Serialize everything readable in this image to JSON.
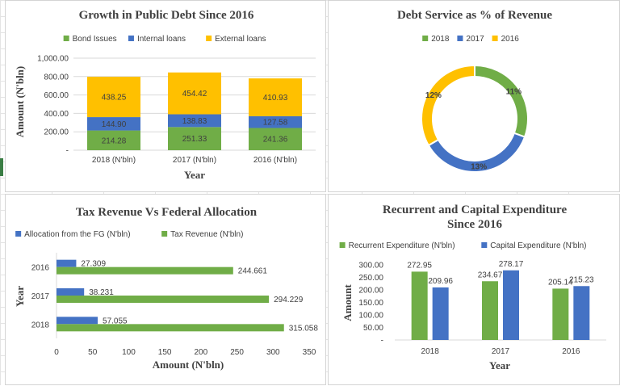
{
  "colors": {
    "green": "#70ad47",
    "blue": "#4472c4",
    "yellow": "#ffc000",
    "text": "#404040",
    "grid": "#d9d9d9"
  },
  "chart_data": [
    {
      "id": "public_debt",
      "type": "stacked-bar",
      "title": "Growth in Public Debt Since 2016",
      "xlabel": "Year",
      "ylabel": "Amount (N'bln)",
      "categories": [
        "2018 (N'bln)",
        "2017 (N'bln)",
        "2016 (N'bln)"
      ],
      "series": [
        {
          "name": "Bond Issues",
          "color": "#70ad47",
          "values": [
            214.28,
            251.33,
            241.36
          ]
        },
        {
          "name": "Internal loans",
          "color": "#4472c4",
          "values": [
            144.9,
            138.83,
            127.58
          ]
        },
        {
          "name": "External loans",
          "color": "#ffc000",
          "values": [
            438.25,
            454.42,
            410.93
          ]
        }
      ],
      "data_labels": [
        [
          "214.28",
          "144.90",
          "438.25"
        ],
        [
          "251.33",
          "138.83",
          "454.42"
        ],
        [
          "241.36",
          "127.58",
          "410.93"
        ]
      ],
      "ylim": [
        0,
        1000
      ],
      "yticks": [
        "-",
        "200.00",
        "400.00",
        "600.00",
        "800.00",
        "1,000.00"
      ],
      "legend": "top",
      "grid": true
    },
    {
      "id": "debt_service",
      "type": "doughnut",
      "title": "Debt Service as % of Revenue",
      "series": [
        {
          "name": "2018",
          "color": "#70ad47",
          "value": 11,
          "label": "11%"
        },
        {
          "name": "2017",
          "color": "#4472c4",
          "value": 13,
          "label": "13%"
        },
        {
          "name": "2016",
          "color": "#ffc000",
          "value": 12,
          "label": "12%"
        }
      ],
      "legend": "top"
    },
    {
      "id": "tax_vs_fed",
      "type": "horizontal-bar",
      "title": "Tax Revenue Vs Federal Allocation",
      "xlabel": "Amount (N'bln)",
      "ylabel": "Year",
      "categories": [
        "2016",
        "2017",
        "2018"
      ],
      "series": [
        {
          "name": "Allocation from the FG (N'bln)",
          "color": "#4472c4",
          "values": [
            27.309,
            38.231,
            57.055
          ],
          "labels": [
            "27.309",
            "38.231",
            "57.055"
          ]
        },
        {
          "name": "Tax Revenue (N'bln)",
          "color": "#70ad47",
          "values": [
            244.661,
            294.229,
            315.058
          ],
          "labels": [
            "244.661",
            "294.229",
            "315.058"
          ]
        }
      ],
      "xlim": [
        0,
        350
      ],
      "xticks": [
        "0",
        "50",
        "100",
        "150",
        "200",
        "250",
        "300",
        "350"
      ],
      "legend": "top",
      "grid": false
    },
    {
      "id": "expenditure",
      "type": "bar",
      "title_lines": [
        "Recurrent and Capital Expenditure",
        "Since 2016"
      ],
      "xlabel": "Year",
      "ylabel": "Amount",
      "categories": [
        "2018",
        "2017",
        "2016"
      ],
      "series": [
        {
          "name": "Recurrent Expenditure (N'bln)",
          "color": "#70ad47",
          "values": [
            272.95,
            234.67,
            205.14
          ],
          "labels": [
            "272.95",
            "234.67",
            "205.14"
          ]
        },
        {
          "name": "Capital Expenditure (N'bln)",
          "color": "#4472c4",
          "values": [
            209.96,
            278.17,
            215.23
          ],
          "labels": [
            "209.96",
            "278.17",
            "215.23"
          ]
        }
      ],
      "ylim": [
        0,
        300
      ],
      "yticks": [
        "-",
        "50.00",
        "100.00",
        "150.00",
        "200.00",
        "250.00",
        "300.00"
      ],
      "legend": "top",
      "grid": false
    }
  ]
}
